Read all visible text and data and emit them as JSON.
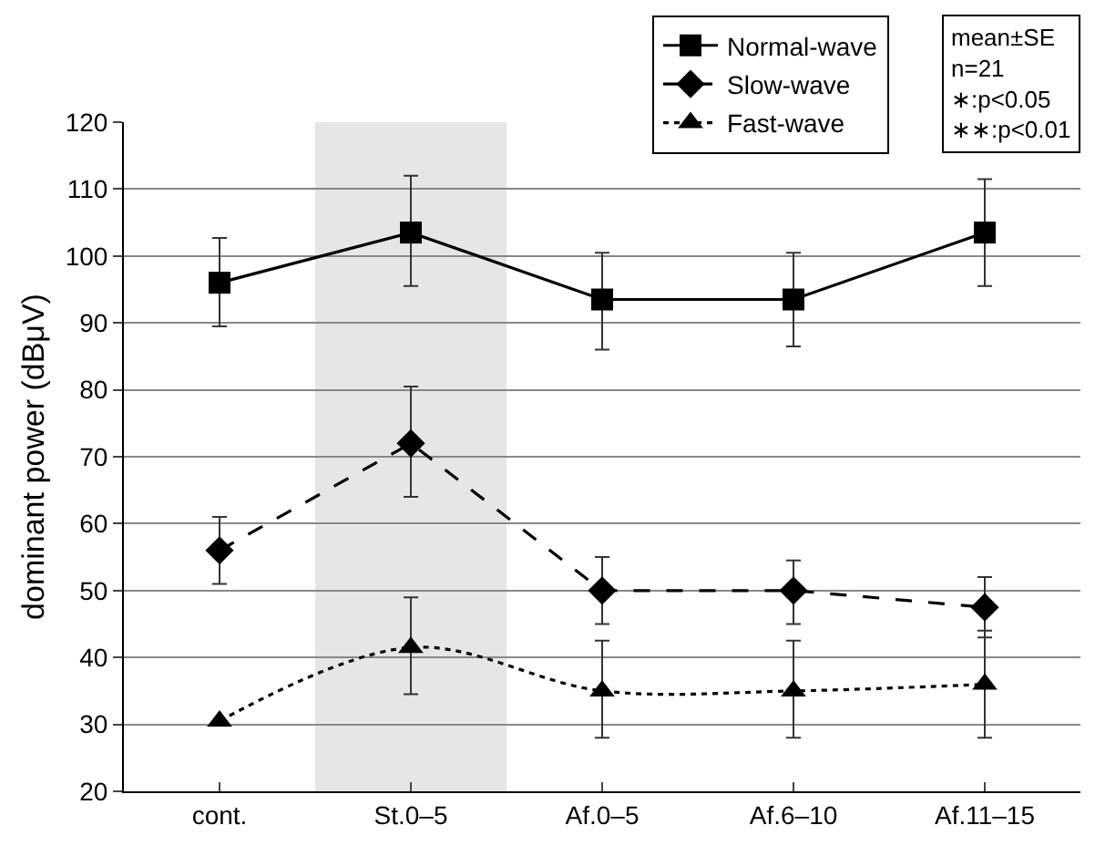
{
  "chart_data": {
    "type": "line",
    "ylabel": "dominant power (dBμV)",
    "categories": [
      "cont.",
      "St.0–5",
      "Af.0–5",
      "Af.6–10",
      "Af.11–15"
    ],
    "series": [
      {
        "name": "Normal-wave",
        "color": "#000000",
        "marker": "square",
        "line_style": "solid",
        "values": [
          96,
          103.5,
          93.5,
          93.5,
          103.5
        ],
        "errors": [
          [
            89.5,
            102.7
          ],
          [
            95.5,
            112
          ],
          [
            86,
            100.5
          ],
          [
            86.5,
            100.5
          ],
          [
            95.5,
            111.5
          ]
        ]
      },
      {
        "name": "Slow-wave",
        "color": "#000000",
        "marker": "diamond",
        "line_style": "dashed",
        "values": [
          56,
          72,
          50,
          50,
          47.5
        ],
        "errors": [
          [
            51,
            61
          ],
          [
            64,
            80.5
          ],
          [
            45,
            55
          ],
          [
            45,
            54.5
          ],
          [
            43,
            52
          ]
        ]
      },
      {
        "name": "Fast-wave",
        "color": "#000000",
        "marker": "triangle",
        "line_style": "dotted",
        "values": [
          30.5,
          41.5,
          35,
          35,
          36
        ],
        "errors": [
          null,
          [
            34.5,
            49
          ],
          [
            28,
            42.5
          ],
          [
            28,
            42.5
          ],
          [
            28,
            44
          ]
        ]
      }
    ],
    "ylim": [
      20,
      120
    ],
    "yticks": [
      20,
      30,
      40,
      50,
      60,
      70,
      80,
      90,
      100,
      110,
      120
    ],
    "grid": "y",
    "legend": "top right",
    "bands": [
      {
        "axis": "x",
        "from": "St.0–5",
        "to": "St.0–5",
        "color": "#e6e6e6"
      }
    ],
    "annotations": [
      "mean±SE\nn=21\n∗:p<0.05\n∗∗:p<0.01"
    ]
  }
}
